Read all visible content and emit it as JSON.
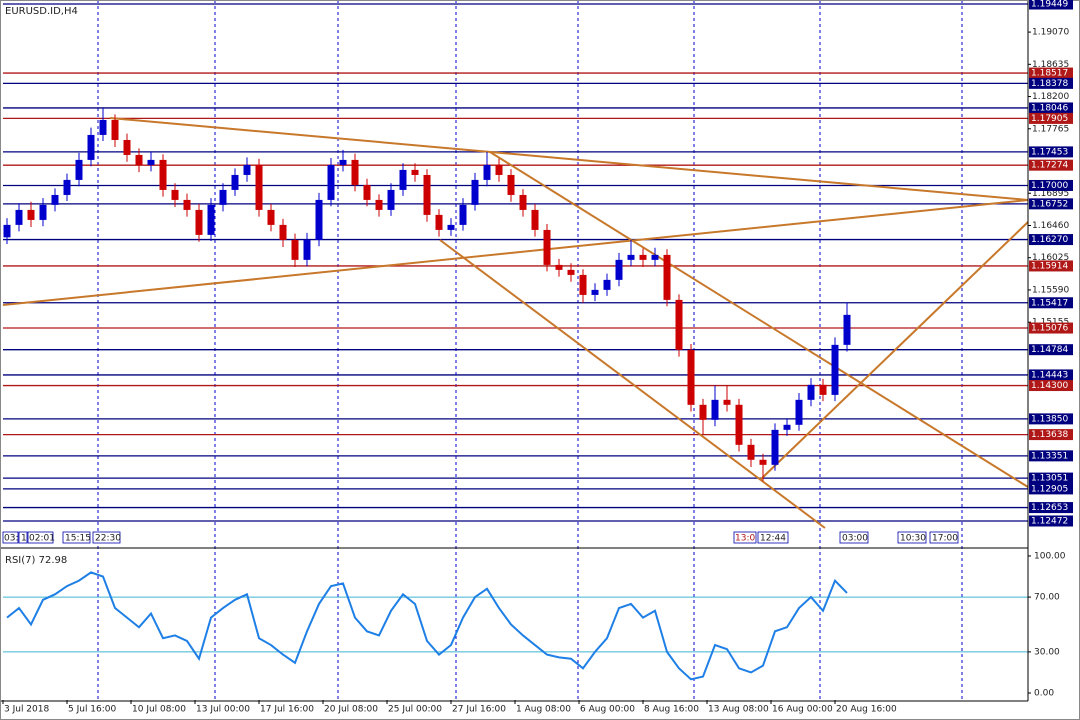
{
  "chart_data": {
    "type": "candlestick",
    "title": "EURUSD.ID,H4",
    "x": [
      1,
      4,
      7,
      10,
      13,
      16,
      19,
      22,
      25,
      28,
      31,
      34,
      37,
      40,
      43,
      46,
      49,
      52,
      55,
      58,
      61,
      64,
      67,
      70,
      73,
      76,
      79,
      82,
      85,
      88,
      91,
      94,
      97,
      100,
      103,
      106,
      109,
      112,
      115,
      118,
      121,
      124,
      127,
      130,
      133,
      136,
      139,
      142,
      145,
      148,
      151,
      154,
      157,
      160,
      163,
      166,
      169,
      172,
      175,
      178,
      181,
      184,
      187,
      190,
      193,
      196,
      199,
      202,
      205,
      208,
      211
    ],
    "ohlc": [
      [
        1.163,
        1.1656,
        1.1621,
        1.16468
      ],
      [
        1.16468,
        1.1676,
        1.1638,
        1.1667
      ],
      [
        1.1667,
        1.1678,
        1.1644,
        1.16535
      ],
      [
        1.16535,
        1.1683,
        1.1645,
        1.16738
      ],
      [
        1.16738,
        1.1696,
        1.1665,
        1.16872
      ],
      [
        1.16872,
        1.1716,
        1.1679,
        1.17075
      ],
      [
        1.17075,
        1.1744,
        1.1699,
        1.17345
      ],
      [
        1.17345,
        1.1778,
        1.1726,
        1.17682
      ],
      [
        1.17682,
        1.18046,
        1.176,
        1.17884
      ],
      [
        1.17884,
        1.1796,
        1.1752,
        1.17614
      ],
      [
        1.17614,
        1.177,
        1.1732,
        1.17412
      ],
      [
        1.17412,
        1.175,
        1.1718,
        1.17277
      ],
      [
        1.17277,
        1.1745,
        1.1719,
        1.17345
      ],
      [
        1.17345,
        1.1742,
        1.1685,
        1.1694
      ],
      [
        1.1694,
        1.1703,
        1.1671,
        1.16805
      ],
      [
        1.16805,
        1.1689,
        1.1658,
        1.1667
      ],
      [
        1.1667,
        1.1675,
        1.1624,
        1.16333
      ],
      [
        1.16333,
        1.1683,
        1.1625,
        1.16738
      ],
      [
        1.16738,
        1.1703,
        1.1665,
        1.1694
      ],
      [
        1.1694,
        1.1723,
        1.1686,
        1.17142
      ],
      [
        1.17142,
        1.1738,
        1.1705,
        1.17277
      ],
      [
        1.17277,
        1.1736,
        1.1658,
        1.1667
      ],
      [
        1.1667,
        1.1675,
        1.1638,
        1.16468
      ],
      [
        1.16468,
        1.1655,
        1.1617,
        1.16265
      ],
      [
        1.16265,
        1.1635,
        1.159,
        1.15996
      ],
      [
        1.15996,
        1.1636,
        1.1591,
        1.16265
      ],
      [
        1.16265,
        1.169,
        1.1618,
        1.16805
      ],
      [
        1.16805,
        1.1737,
        1.1672,
        1.17277
      ],
      [
        1.17277,
        1.1748,
        1.1719,
        1.17345
      ],
      [
        1.17345,
        1.1743,
        1.1692,
        1.17007
      ],
      [
        1.17007,
        1.1709,
        1.1672,
        1.16805
      ],
      [
        1.16805,
        1.1688,
        1.1658,
        1.1667
      ],
      [
        1.1667,
        1.1703,
        1.1659,
        1.1694
      ],
      [
        1.1694,
        1.173,
        1.1686,
        1.1721
      ],
      [
        1.1721,
        1.173,
        1.1705,
        1.17142
      ],
      [
        1.17142,
        1.1722,
        1.1651,
        1.16603
      ],
      [
        1.16603,
        1.1668,
        1.1631,
        1.164
      ],
      [
        1.164,
        1.1656,
        1.1632,
        1.16468
      ],
      [
        1.16468,
        1.1683,
        1.1639,
        1.16738
      ],
      [
        1.16738,
        1.1717,
        1.1666,
        1.17075
      ],
      [
        1.17075,
        1.17453,
        1.1699,
        1.17277
      ],
      [
        1.17277,
        1.1736,
        1.1705,
        1.17142
      ],
      [
        1.17142,
        1.1722,
        1.1678,
        1.16872
      ],
      [
        1.16872,
        1.1695,
        1.1658,
        1.1667
      ],
      [
        1.1667,
        1.1675,
        1.1631,
        1.164
      ],
      [
        1.164,
        1.1648,
        1.1584,
        1.15928
      ],
      [
        1.15928,
        1.1601,
        1.1577,
        1.15861
      ],
      [
        1.15861,
        1.1595,
        1.157,
        1.15793
      ],
      [
        1.15793,
        1.1587,
        1.15417,
        1.15523
      ],
      [
        1.15523,
        1.1568,
        1.1544,
        1.15591
      ],
      [
        1.15591,
        1.1581,
        1.1551,
        1.15726
      ],
      [
        1.15726,
        1.1609,
        1.1564,
        1.15996
      ],
      [
        1.15996,
        1.1627,
        1.1591,
        1.16063
      ],
      [
        1.16063,
        1.1615,
        1.159,
        1.15996
      ],
      [
        1.15996,
        1.1616,
        1.1591,
        1.16063
      ],
      [
        1.16063,
        1.1614,
        1.1537,
        1.15456
      ],
      [
        1.15456,
        1.1553,
        1.1469,
        1.14781
      ],
      [
        1.14781,
        1.1486,
        1.1395,
        1.1404
      ],
      [
        1.1404,
        1.1412,
        1.13638,
        1.13837
      ],
      [
        1.13837,
        1.143,
        1.1375,
        1.14107
      ],
      [
        1.14107,
        1.143,
        1.1395,
        1.1404
      ],
      [
        1.1404,
        1.1412,
        1.1341,
        1.135
      ],
      [
        1.135,
        1.1358,
        1.132,
        1.13298
      ],
      [
        1.13298,
        1.1338,
        1.1301,
        1.1323
      ],
      [
        1.1323,
        1.1379,
        1.1315,
        1.13702
      ],
      [
        1.13702,
        1.1385,
        1.1362,
        1.1377
      ],
      [
        1.1377,
        1.142,
        1.1369,
        1.14107
      ],
      [
        1.14107,
        1.144,
        1.1402,
        1.14309
      ],
      [
        1.14309,
        1.1439,
        1.1409,
        1.14174
      ],
      [
        1.14174,
        1.1495,
        1.1409,
        1.14849
      ],
      [
        1.14849,
        1.15417,
        1.1476,
        1.15254
      ]
    ],
    "up_color": "#0000cd",
    "down_color": "#cc0000",
    "xlim": [
      0,
      256.25
    ],
    "xticks": [
      {
        "value": 0,
        "label": "3 Jul 2018"
      },
      {
        "value": 16,
        "label": "5 Jul 16:00"
      },
      {
        "value": 32,
        "label": "10 Jul 08:00"
      },
      {
        "value": 48,
        "label": "13 Jul 00:00"
      },
      {
        "value": 64,
        "label": "17 Jul 16:00"
      },
      {
        "value": 80,
        "label": "20 Jul 08:00"
      },
      {
        "value": 96,
        "label": "25 Jul 00:00"
      },
      {
        "value": 112,
        "label": "27 Jul 16:00"
      },
      {
        "value": 128,
        "label": "1 Aug 08:00"
      },
      {
        "value": 144,
        "label": "6 Aug 00:00"
      },
      {
        "value": 160,
        "label": "8 Aug 16:00"
      },
      {
        "value": 176,
        "label": "13 Aug 08:00"
      },
      {
        "value": 192,
        "label": "16 Aug 00:00"
      },
      {
        "value": 208,
        "label": "20 Aug 16:00"
      }
    ],
    "ylim": [
      1.12121,
      1.19503
    ],
    "yticks": [
      {
        "value": 1.1907,
        "label": "1.19070"
      },
      {
        "value": 1.18635,
        "label": "1.18635"
      },
      {
        "value": 1.182,
        "label": "1.18200"
      },
      {
        "value": 1.17765,
        "label": "1.17765"
      },
      {
        "value": 1.16895,
        "label": "1.16895"
      },
      {
        "value": 1.1646,
        "label": "1.16460"
      },
      {
        "value": 1.16025,
        "label": "1.16025"
      },
      {
        "value": 1.1559,
        "label": "1.15590"
      },
      {
        "value": 1.15155,
        "label": "1.15155"
      }
    ],
    "levels": [
      1.19449,
      1.18517,
      1.18378,
      1.18046,
      1.17905,
      1.17453,
      1.17274,
      {
        "value": 1.17,
        "label": "1.17000"
      },
      1.16752,
      {
        "value": 1.1627,
        "label": "1.16270"
      },
      1.15914,
      1.15417,
      1.15076,
      1.14784,
      1.14443,
      {
        "value": 1.143,
        "label": "1.14300"
      },
      {
        "value": 1.1385,
        "label": "1.13850"
      },
      1.13638,
      1.13351,
      1.13051,
      1.12905,
      1.12653,
      1.12472
    ],
    "level_colors": [
      "#00007f",
      "#b01818",
      "#00007f",
      "#00007f",
      "#b01818",
      "#00007f",
      "#b01818",
      "#00007f",
      "#00007f",
      "#00007f",
      "#b01818",
      "#00007f",
      "#b01818",
      "#00007f",
      "#00007f",
      "#b01818",
      "#00007f",
      "#b01818",
      "#00007f",
      "#00007f",
      "#00007f",
      "#00007f",
      "#00007f"
    ],
    "annotations": [
      "03:",
      "1",
      "02:01",
      "15:15",
      "22:30",
      "13:0",
      "12:44",
      "03:00",
      "10:30",
      "17:00"
    ],
    "indicator": {
      "type": "line",
      "title": "RSI(7) 72.98",
      "values": [
        55,
        62,
        50,
        68,
        72,
        78,
        82,
        88,
        85,
        62,
        55,
        48,
        58,
        40,
        42,
        38,
        25,
        55,
        62,
        68,
        72,
        40,
        35,
        28,
        22,
        45,
        65,
        78,
        80,
        55,
        45,
        42,
        60,
        72,
        65,
        38,
        28,
        35,
        55,
        70,
        76,
        62,
        50,
        42,
        35,
        28,
        26,
        25,
        18,
        30,
        40,
        62,
        65,
        55,
        60,
        30,
        18,
        10,
        12,
        35,
        32,
        18,
        15,
        20,
        45,
        48,
        62,
        70,
        60,
        82,
        72.98
      ],
      "color": "#1e7fe6",
      "ylim": [
        -5.1,
        105.8
      ],
      "yticks": [
        {
          "value": 100,
          "label": "100.00"
        },
        {
          "value": 70,
          "label": "70.00"
        },
        {
          "value": 30,
          "label": "30.00"
        },
        {
          "value": 0,
          "label": "0.00"
        }
      ],
      "levels": [
        70,
        30
      ],
      "level_color": "#3cb4d0"
    }
  }
}
